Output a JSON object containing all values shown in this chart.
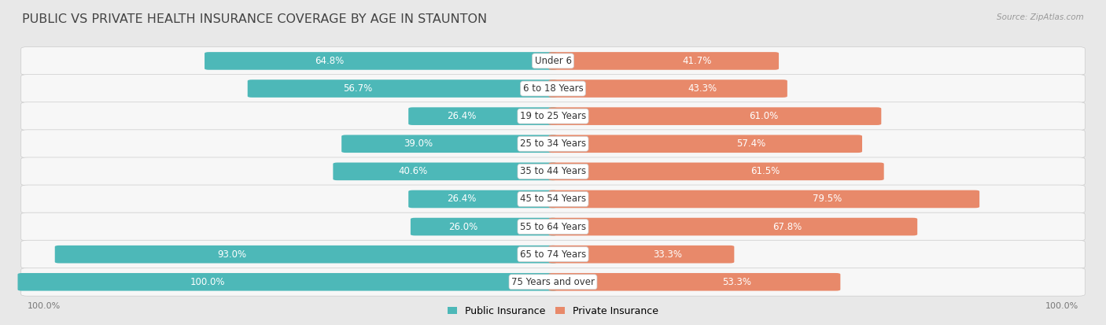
{
  "title": "PUBLIC VS PRIVATE HEALTH INSURANCE COVERAGE BY AGE IN STAUNTON",
  "source": "Source: ZipAtlas.com",
  "categories": [
    "Under 6",
    "6 to 18 Years",
    "19 to 25 Years",
    "25 to 34 Years",
    "35 to 44 Years",
    "45 to 54 Years",
    "55 to 64 Years",
    "65 to 74 Years",
    "75 Years and over"
  ],
  "public_values": [
    64.8,
    56.7,
    26.4,
    39.0,
    40.6,
    26.4,
    26.0,
    93.0,
    100.0
  ],
  "private_values": [
    41.7,
    43.3,
    61.0,
    57.4,
    61.5,
    79.5,
    67.8,
    33.3,
    53.3
  ],
  "public_color": "#4db8b8",
  "private_color": "#e8896a",
  "public_label": "Public Insurance",
  "private_label": "Private Insurance",
  "background_color": "#e8e8e8",
  "row_bg_color": "#f7f7f7",
  "max_value": 100.0,
  "title_fontsize": 11.5,
  "bar_label_fontsize": 8.5,
  "cat_label_fontsize": 8.5,
  "axis_label_fontsize": 8,
  "legend_fontsize": 9,
  "left_axis_label": "100.0%",
  "right_axis_label": "100.0%"
}
